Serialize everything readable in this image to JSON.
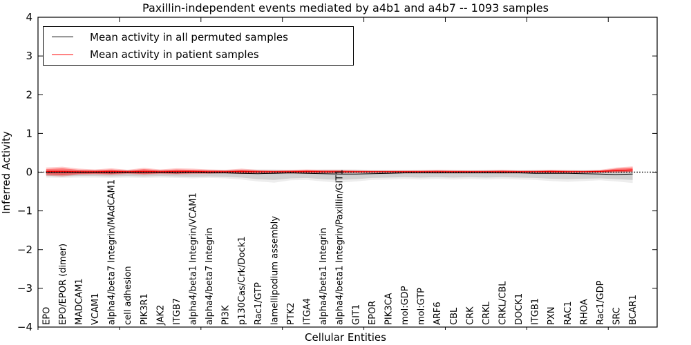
{
  "figure": {
    "title": "Paxillin-independent events mediated by a4b1 and a4b7 -- 1093 samples",
    "xlabel": "Cellular Entities",
    "ylabel": "Inferred Activity",
    "legend": [
      {
        "label": "Mean activity in all permuted samples",
        "color": "#000000"
      },
      {
        "label": "Mean activity in patient samples",
        "color": "#ff0000"
      }
    ]
  },
  "chart_data": {
    "type": "line",
    "title": "Paxillin-independent events mediated by a4b1 and a4b7 -- 1093 samples",
    "xlabel": "Cellular Entities",
    "ylabel": "Inferred Activity",
    "ylim": [
      -4,
      4
    ],
    "xlim": [
      0,
      38
    ],
    "yticks": [
      -4,
      -3,
      -2,
      -1,
      0,
      1,
      2,
      3,
      4
    ],
    "xtick_positions": [
      0,
      5,
      10,
      15,
      20,
      25,
      30,
      35
    ],
    "grid": false,
    "legend_position": "upper left",
    "categories": [
      "EPO",
      "EPO/EPOR (dimer)",
      "MADCAM1",
      "VCAM1",
      "alpha4/beta7 Integrin/MAdCAM1",
      "cell adhesion",
      "PIK3R1",
      "JAK2",
      "ITGB7",
      "alpha4/beta1 Integrin/VCAM1",
      "alpha4/beta7 Integrin",
      "PI3K",
      "p130Cas/Crk/Dock1",
      "Rac1/GTP",
      "lamellipodium assembly",
      "PTK2",
      "ITGA4",
      "alpha4/beta1 Integrin",
      "alpha4/beta1 Integrin/Paxillin/GIT1",
      "GIT1",
      "EPOR",
      "PIK3CA",
      "mol:GDP",
      "mol:GTP",
      "ARF6",
      "CBL",
      "CRK",
      "CRKL",
      "CRKL/CBL",
      "DOCK1",
      "ITGB1",
      "PXN",
      "RAC1",
      "RHOA",
      "Rac1/GDP",
      "SRC",
      "BCAR1"
    ],
    "zero_line": {
      "y": 0,
      "style": "dotted",
      "color": "#000000"
    },
    "series": [
      {
        "name": "Mean activity in all permuted samples",
        "color": "#000000",
        "width": 1.0,
        "values": [
          -0.01,
          -0.01,
          -0.01,
          -0.01,
          -0.02,
          -0.01,
          -0.01,
          -0.01,
          -0.02,
          -0.01,
          -0.02,
          -0.02,
          -0.03,
          -0.04,
          -0.03,
          -0.02,
          -0.03,
          -0.04,
          -0.05,
          -0.05,
          -0.04,
          -0.03,
          -0.02,
          -0.02,
          -0.02,
          -0.02,
          -0.02,
          -0.02,
          -0.02,
          -0.02,
          -0.03,
          -0.03,
          -0.03,
          -0.04,
          -0.05,
          -0.06,
          -0.05
        ]
      },
      {
        "name": "Mean activity in patient samples",
        "color": "#ff0000",
        "width": 1.3,
        "values": [
          0.02,
          0.02,
          0.01,
          0.01,
          0.02,
          0.01,
          0.02,
          0.01,
          0.02,
          0.02,
          0.01,
          0.01,
          0.02,
          0.01,
          0.01,
          0.01,
          0.02,
          0.01,
          0.01,
          0.01,
          0.01,
          0.01,
          0.01,
          0.01,
          0.01,
          0.01,
          0.01,
          0.01,
          0.01,
          0.01,
          0.01,
          0.02,
          0.01,
          0.01,
          0.02,
          0.04,
          0.06
        ]
      }
    ],
    "bands": [
      {
        "name": "permuted-outer-band",
        "color": "rgba(0,0,0,0.07)",
        "upper": [
          0.06,
          0.06,
          0.06,
          0.06,
          0.06,
          0.06,
          0.06,
          0.06,
          0.06,
          0.06,
          0.06,
          0.06,
          0.07,
          0.07,
          0.07,
          0.06,
          0.06,
          0.07,
          0.07,
          0.07,
          0.06,
          0.06,
          0.06,
          0.06,
          0.06,
          0.06,
          0.06,
          0.06,
          0.06,
          0.06,
          0.06,
          0.06,
          0.06,
          0.06,
          0.06,
          0.07,
          0.07
        ],
        "lower": [
          -0.14,
          -0.15,
          -0.14,
          -0.14,
          -0.15,
          -0.14,
          -0.15,
          -0.14,
          -0.15,
          -0.16,
          -0.15,
          -0.16,
          -0.19,
          -0.24,
          -0.27,
          -0.21,
          -0.2,
          -0.24,
          -0.27,
          -0.24,
          -0.2,
          -0.19,
          -0.18,
          -0.19,
          -0.18,
          -0.19,
          -0.18,
          -0.19,
          -0.18,
          -0.19,
          -0.2,
          -0.23,
          -0.25,
          -0.23,
          -0.21,
          -0.24,
          -0.28
        ]
      },
      {
        "name": "permuted-inner-band",
        "color": "rgba(0,0,0,0.12)",
        "upper": [
          0.04,
          0.04,
          0.04,
          0.04,
          0.04,
          0.04,
          0.04,
          0.04,
          0.04,
          0.04,
          0.04,
          0.04,
          0.05,
          0.05,
          0.05,
          0.04,
          0.04,
          0.05,
          0.05,
          0.05,
          0.04,
          0.04,
          0.04,
          0.04,
          0.04,
          0.04,
          0.04,
          0.04,
          0.04,
          0.04,
          0.04,
          0.04,
          0.04,
          0.04,
          0.04,
          0.05,
          0.05
        ],
        "lower": [
          -0.1,
          -0.11,
          -0.1,
          -0.1,
          -0.11,
          -0.1,
          -0.11,
          -0.1,
          -0.11,
          -0.12,
          -0.11,
          -0.12,
          -0.14,
          -0.18,
          -0.2,
          -0.16,
          -0.15,
          -0.18,
          -0.2,
          -0.18,
          -0.15,
          -0.14,
          -0.13,
          -0.14,
          -0.13,
          -0.14,
          -0.13,
          -0.14,
          -0.13,
          -0.14,
          -0.15,
          -0.17,
          -0.18,
          -0.17,
          -0.16,
          -0.18,
          -0.2
        ]
      },
      {
        "name": "patient-outer-band",
        "color": "rgba(255,0,0,0.20)",
        "upper": [
          0.12,
          0.14,
          0.09,
          0.07,
          0.1,
          0.06,
          0.11,
          0.07,
          0.1,
          0.09,
          0.07,
          0.06,
          0.09,
          0.06,
          0.05,
          0.06,
          0.07,
          0.06,
          0.06,
          0.05,
          0.04,
          0.04,
          0.04,
          0.05,
          0.06,
          0.05,
          0.04,
          0.05,
          0.06,
          0.04,
          0.05,
          0.06,
          0.05,
          0.04,
          0.06,
          0.12,
          0.15
        ],
        "lower": [
          -0.09,
          -0.11,
          -0.07,
          -0.06,
          -0.08,
          -0.05,
          -0.07,
          -0.05,
          -0.06,
          -0.05,
          -0.04,
          -0.03,
          -0.05,
          -0.03,
          -0.03,
          -0.03,
          -0.03,
          -0.03,
          -0.03,
          -0.02,
          -0.02,
          -0.02,
          -0.02,
          -0.02,
          -0.03,
          -0.02,
          -0.02,
          -0.02,
          -0.03,
          -0.02,
          -0.02,
          -0.03,
          -0.02,
          -0.02,
          -0.02,
          -0.01,
          0.0
        ]
      },
      {
        "name": "patient-inner-band",
        "color": "rgba(255,0,0,0.40)",
        "upper": [
          0.08,
          0.1,
          0.06,
          0.05,
          0.07,
          0.04,
          0.08,
          0.05,
          0.07,
          0.06,
          0.05,
          0.04,
          0.06,
          0.04,
          0.03,
          0.04,
          0.05,
          0.04,
          0.04,
          0.03,
          0.03,
          0.03,
          0.03,
          0.03,
          0.04,
          0.03,
          0.03,
          0.03,
          0.04,
          0.03,
          0.03,
          0.04,
          0.03,
          0.03,
          0.04,
          0.09,
          0.12
        ],
        "lower": [
          -0.06,
          -0.08,
          -0.05,
          -0.04,
          -0.05,
          -0.03,
          -0.05,
          -0.03,
          -0.04,
          -0.03,
          -0.03,
          -0.02,
          -0.03,
          -0.02,
          -0.02,
          -0.02,
          -0.02,
          -0.02,
          -0.02,
          -0.01,
          -0.01,
          -0.01,
          -0.01,
          -0.01,
          -0.02,
          -0.01,
          -0.01,
          -0.01,
          -0.02,
          -0.01,
          -0.01,
          -0.02,
          -0.01,
          -0.01,
          -0.01,
          0.0,
          0.01
        ]
      }
    ]
  }
}
